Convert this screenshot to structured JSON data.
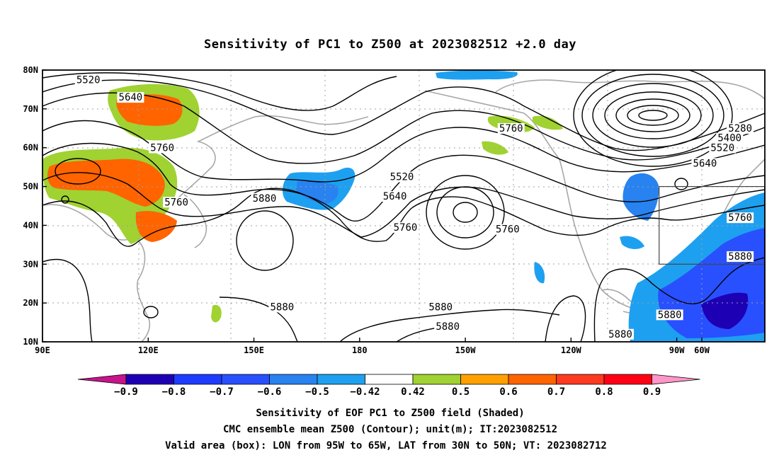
{
  "chart_data": {
    "type": "heatmap",
    "title": "Sensitivity of PC1 to Z500 at 2023082512 +2.0 day",
    "map": {
      "lon_range": [
        90,
        295
      ],
      "lat_range": [
        10,
        80
      ],
      "x_ticks": [
        {
          "lon": 90,
          "label": "90E"
        },
        {
          "lon": 120,
          "label": "120E"
        },
        {
          "lon": 150,
          "label": "150E"
        },
        {
          "lon": 180,
          "label": "180"
        },
        {
          "lon": 210,
          "label": "150W"
        },
        {
          "lon": 240,
          "label": "120W"
        },
        {
          "lon": 270,
          "label": "90W"
        },
        {
          "lon": 300,
          "label": "60W"
        }
      ],
      "y_ticks": [
        {
          "lat": 80,
          "label": "80N"
        },
        {
          "lat": 70,
          "label": "70N"
        },
        {
          "lat": 60,
          "label": "60N"
        },
        {
          "lat": 50,
          "label": "50N"
        },
        {
          "lat": 40,
          "label": "40N"
        },
        {
          "lat": 30,
          "label": "30N"
        },
        {
          "lat": 20,
          "label": "20N"
        },
        {
          "lat": 10,
          "label": "10N"
        }
      ],
      "grid": true,
      "valid_box": {
        "lon_min": 265,
        "lon_max": 295,
        "lat_min": 30,
        "lat_max": 50
      }
    },
    "contour_labels": [
      {
        "text": "5520",
        "lon": 103,
        "lat": 77
      },
      {
        "text": "5640",
        "lon": 115,
        "lat": 72.5
      },
      {
        "text": "5760",
        "lon": 124,
        "lat": 59.5
      },
      {
        "text": "5760",
        "lon": 128,
        "lat": 45.5
      },
      {
        "text": "5880",
        "lon": 153,
        "lat": 46.5
      },
      {
        "text": "5520",
        "lon": 192,
        "lat": 52
      },
      {
        "text": "5640",
        "lon": 190,
        "lat": 47
      },
      {
        "text": "5760",
        "lon": 193,
        "lat": 39
      },
      {
        "text": "5760",
        "lon": 223,
        "lat": 64.5
      },
      {
        "text": "5760",
        "lon": 222,
        "lat": 38.5
      },
      {
        "text": "5280",
        "lon": 288,
        "lat": 64.5
      },
      {
        "text": "5400",
        "lon": 285,
        "lat": 62
      },
      {
        "text": "5520",
        "lon": 283,
        "lat": 59.5
      },
      {
        "text": "5640",
        "lon": 278,
        "lat": 55.5
      },
      {
        "text": "5760",
        "lon": 288,
        "lat": 41.5
      },
      {
        "text": "5880",
        "lon": 288,
        "lat": 31.5
      },
      {
        "text": "5880",
        "lon": 158,
        "lat": 18.5
      },
      {
        "text": "5880",
        "lon": 203,
        "lat": 18.5
      },
      {
        "text": "5880",
        "lon": 205,
        "lat": 13.5
      },
      {
        "text": "5880",
        "lon": 268,
        "lat": 16.5
      },
      {
        "text": "5880",
        "lon": 254,
        "lat": 11.5
      }
    ],
    "colorbar": {
      "levels": [
        "-0.9",
        "-0.8",
        "-0.7",
        "-0.6",
        "-0.5",
        "-0.42",
        "0.42",
        "0.5",
        "0.6",
        "0.7",
        "0.8",
        "0.9"
      ],
      "colors": [
        "#1e00b4",
        "#1e3cff",
        "#2850ff",
        "#2882f0",
        "#1ea0f0",
        "#ffffff",
        "#a0d232",
        "#ffa000",
        "#ff6400",
        "#ff3a1e",
        "#ff0014"
      ],
      "under_color": "#c8148c",
      "over_color": "#ff96c8"
    }
  },
  "caption": {
    "line1": "Sensitivity of EOF PC1 to Z500 field (Shaded)",
    "line2": "CMC ensemble mean Z500 (Contour); unit(m); IT:2023082512",
    "line3": "Valid area (box): LON from 95W to 65W, LAT from 30N to 50N; VT: 2023082712"
  }
}
